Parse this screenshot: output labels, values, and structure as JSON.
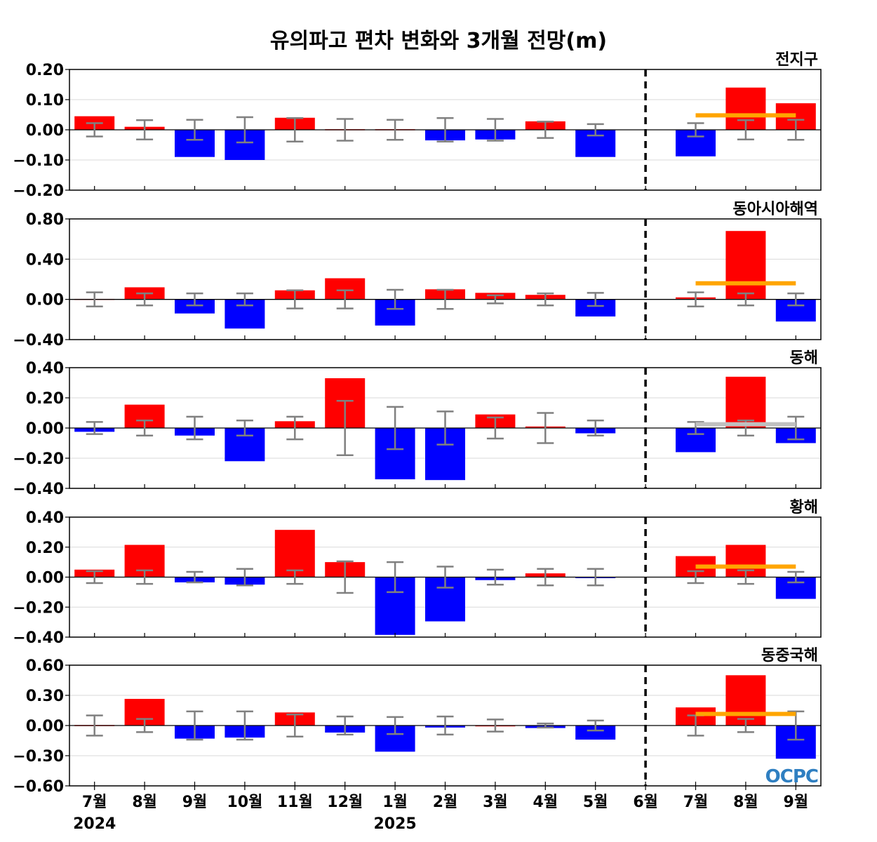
{
  "chart_data": {
    "type": "bar",
    "title": "유의파고 편차 변화와 3개월 전망(m)",
    "categories": [
      "7월",
      "8월",
      "9월",
      "10월",
      "11월",
      "12월",
      "1월",
      "2월",
      "3월",
      "4월",
      "5월",
      "6월",
      "7월",
      "8월",
      "9월"
    ],
    "year_labels": [
      {
        "index": 0,
        "label": "2024"
      },
      {
        "index": 6,
        "label": "2025"
      }
    ],
    "forecast_divider_after_category": "6월",
    "colors": {
      "positive": "#ff0000",
      "negative": "#0000ff",
      "error_bar": "#808080",
      "outlook_orange": "#ffa500",
      "outlook_gray": "#c0c0c0",
      "divider": "#000000"
    },
    "grid": true,
    "logo": "OCPC",
    "panels": [
      {
        "name": "전지구",
        "ylim": [
          -0.2,
          0.2
        ],
        "yticks": [
          0.2,
          0.1,
          0.0,
          -0.1,
          -0.2
        ],
        "ytick_labels": [
          "0.20",
          "0.10",
          "0.00",
          "−0.10",
          "−0.20"
        ],
        "values": [
          0.045,
          0.01,
          -0.09,
          -0.1,
          0.04,
          0.002,
          0.002,
          -0.035,
          -0.032,
          0.028,
          -0.09,
          0.0,
          -0.088,
          0.14,
          0.088
        ],
        "error": [
          0.022,
          0.032,
          0.033,
          0.042,
          0.039,
          0.036,
          0.033,
          0.039,
          0.036,
          0.027,
          0.019,
          null,
          0.022,
          0.032,
          0.033
        ],
        "outlook": {
          "value": 0.048,
          "color": "orange"
        }
      },
      {
        "name": "동아시아해역",
        "ylim": [
          -0.4,
          0.8
        ],
        "yticks": [
          0.8,
          0.4,
          0.0,
          -0.4
        ],
        "ytick_labels": [
          "0.80",
          "0.40",
          "0.00",
          "−0.40"
        ],
        "values": [
          0.005,
          0.12,
          -0.14,
          -0.29,
          0.09,
          0.21,
          -0.26,
          0.1,
          0.065,
          0.045,
          -0.17,
          0.0,
          0.02,
          0.68,
          -0.22
        ],
        "error": [
          0.07,
          0.06,
          0.06,
          0.06,
          0.09,
          0.09,
          0.095,
          0.095,
          0.04,
          0.06,
          0.065,
          null,
          0.07,
          0.06,
          0.06
        ],
        "outlook": {
          "value": 0.16,
          "color": "orange"
        }
      },
      {
        "name": "동해",
        "ylim": [
          -0.4,
          0.4
        ],
        "yticks": [
          0.4,
          0.2,
          0.0,
          -0.2,
          -0.4
        ],
        "ytick_labels": [
          "0.40",
          "0.20",
          "0.00",
          "−0.20",
          "−0.40"
        ],
        "values": [
          -0.025,
          0.155,
          -0.05,
          -0.22,
          0.045,
          0.33,
          -0.34,
          -0.345,
          0.09,
          0.01,
          -0.035,
          0.0,
          -0.16,
          0.34,
          -0.1
        ],
        "error": [
          0.04,
          0.05,
          0.075,
          0.05,
          0.075,
          0.18,
          0.14,
          0.11,
          0.07,
          0.1,
          0.05,
          null,
          0.04,
          0.05,
          0.075
        ],
        "outlook": {
          "value": 0.025,
          "color": "gray"
        }
      },
      {
        "name": "황해",
        "ylim": [
          -0.4,
          0.4
        ],
        "yticks": [
          0.4,
          0.2,
          0.0,
          -0.2,
          -0.4
        ],
        "ytick_labels": [
          "0.40",
          "0.20",
          "0.00",
          "−0.20",
          "−0.40"
        ],
        "values": [
          0.05,
          0.215,
          -0.035,
          -0.05,
          0.315,
          0.1,
          -0.385,
          -0.295,
          -0.02,
          0.025,
          -0.005,
          0.0,
          0.14,
          0.215,
          -0.145
        ],
        "error": [
          0.04,
          0.045,
          0.035,
          0.055,
          0.045,
          0.105,
          0.1,
          0.07,
          0.05,
          0.055,
          0.055,
          null,
          0.04,
          0.045,
          0.035
        ],
        "outlook": {
          "value": 0.07,
          "color": "orange"
        }
      },
      {
        "name": "동중국해",
        "ylim": [
          -0.6,
          0.6
        ],
        "yticks": [
          0.6,
          0.3,
          0.0,
          -0.3,
          -0.6
        ],
        "ytick_labels": [
          "0.60",
          "0.30",
          "0.00",
          "−0.30",
          "−0.60"
        ],
        "values": [
          0.005,
          0.265,
          -0.13,
          -0.12,
          0.13,
          -0.07,
          -0.26,
          -0.02,
          0.002,
          -0.025,
          -0.14,
          0.0,
          0.18,
          0.5,
          -0.33
        ],
        "error": [
          0.1,
          0.065,
          0.14,
          0.14,
          0.11,
          0.09,
          0.085,
          0.09,
          0.06,
          0.02,
          0.05,
          null,
          0.1,
          0.065,
          0.14
        ],
        "outlook": {
          "value": 0.115,
          "color": "orange"
        }
      }
    ]
  }
}
